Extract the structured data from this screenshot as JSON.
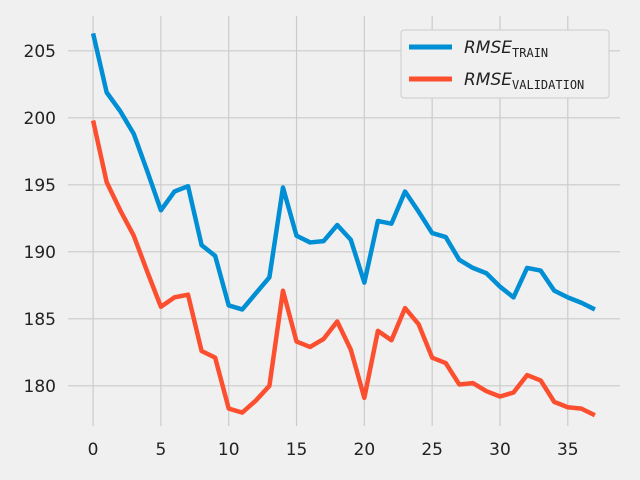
{
  "chart_data": {
    "type": "line",
    "title": "",
    "xlabel": "",
    "ylabel": "",
    "xlim": [
      -1.85,
      38.85
    ],
    "ylim": [
      177.0,
      207.6
    ],
    "xticks": [
      0,
      5,
      10,
      15,
      20,
      25,
      30,
      35
    ],
    "yticks": [
      180,
      185,
      190,
      195,
      200,
      205
    ],
    "grid": true,
    "legend_position": "top-right",
    "x": [
      0,
      1,
      2,
      3,
      4,
      5,
      6,
      7,
      8,
      9,
      10,
      11,
      12,
      13,
      14,
      15,
      16,
      17,
      18,
      19,
      20,
      21,
      22,
      23,
      24,
      25,
      26,
      27,
      28,
      29,
      30,
      31,
      32,
      33,
      34,
      35,
      36,
      37
    ],
    "series": [
      {
        "name": "RMSE",
        "subscript": "TRAIN",
        "color": "#008fd5",
        "values": [
          206.3,
          201.9,
          200.5,
          198.8,
          196.0,
          193.1,
          194.5,
          194.9,
          190.5,
          189.7,
          186.0,
          185.7,
          186.9,
          188.1,
          194.8,
          191.2,
          190.7,
          190.8,
          192.0,
          190.9,
          187.7,
          192.3,
          192.1,
          194.5,
          193.0,
          191.4,
          191.1,
          189.4,
          188.8,
          188.4,
          187.4,
          186.6,
          188.8,
          188.6,
          187.1,
          186.6,
          186.2,
          185.7
        ]
      },
      {
        "name": "RMSE",
        "subscript": "VALIDATION",
        "color": "#fc4f30",
        "values": [
          199.8,
          195.2,
          193.1,
          191.2,
          188.5,
          185.9,
          186.6,
          186.8,
          182.6,
          182.1,
          178.3,
          178.0,
          178.9,
          180.0,
          187.1,
          183.3,
          182.9,
          183.5,
          184.8,
          182.7,
          179.1,
          184.1,
          183.4,
          185.8,
          184.6,
          182.1,
          181.7,
          180.1,
          180.2,
          179.6,
          179.2,
          179.5,
          180.8,
          180.4,
          178.8,
          178.4,
          178.3,
          177.8
        ]
      }
    ]
  }
}
